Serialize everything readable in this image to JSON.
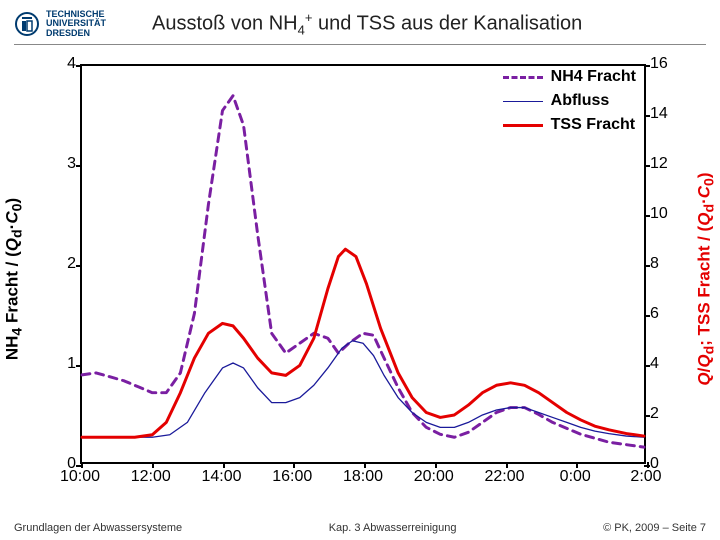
{
  "header": {
    "uni_line1": "TECHNISCHE",
    "uni_line2": "UNIVERSITÄT",
    "uni_line3": "DRESDEN",
    "title_prefix": "Ausstoß von NH",
    "title_sub": "4",
    "title_sup": "+",
    "title_suffix": " und TSS aus der Kanalisation"
  },
  "chart": {
    "type": "line",
    "x_categories": [
      "10:00",
      "12:00",
      "14:00",
      "16:00",
      "18:00",
      "20:00",
      "22:00",
      "0:00",
      "2:00"
    ],
    "y_left": {
      "min": 0,
      "max": 4,
      "ticks": [
        0,
        1,
        2,
        3,
        4
      ],
      "label": "NH₄ Fracht / (Q_d·C₀)"
    },
    "y_right": {
      "min": 0,
      "max": 16,
      "ticks": [
        0,
        2,
        4,
        6,
        8,
        10,
        12,
        14,
        16
      ],
      "label": "Q/Q_d; TSS Fracht / (Q_d·C₀)",
      "color": "#e40000"
    },
    "background_color": "#ffffff",
    "border_color": "#000000",
    "tick_fontsize": 16,
    "label_fontsize": 17,
    "legend": {
      "items": [
        {
          "label": "NH4 Fracht",
          "color": "#7a1fa2",
          "dash": "8,6",
          "width": 3
        },
        {
          "label": "Abfluss",
          "color": "#1a1a9a",
          "dash": "none",
          "width": 1.3
        },
        {
          "label": "TSS Fracht",
          "color": "#e40000",
          "dash": "none",
          "width": 3
        }
      ]
    },
    "series": [
      {
        "name": "NH4 Fracht",
        "axis": "left",
        "color": "#7a1fa2",
        "dash": "8,6",
        "width": 3,
        "points": [
          [
            10.0,
            0.88
          ],
          [
            10.4,
            0.9
          ],
          [
            10.8,
            0.86
          ],
          [
            11.2,
            0.82
          ],
          [
            11.6,
            0.76
          ],
          [
            12.0,
            0.7
          ],
          [
            12.4,
            0.7
          ],
          [
            12.8,
            0.9
          ],
          [
            13.2,
            1.5
          ],
          [
            13.6,
            2.6
          ],
          [
            14.0,
            3.55
          ],
          [
            14.3,
            3.7
          ],
          [
            14.6,
            3.4
          ],
          [
            15.0,
            2.3
          ],
          [
            15.4,
            1.3
          ],
          [
            15.8,
            1.1
          ],
          [
            16.2,
            1.2
          ],
          [
            16.6,
            1.3
          ],
          [
            17.0,
            1.25
          ],
          [
            17.3,
            1.1
          ],
          [
            17.6,
            1.2
          ],
          [
            18.0,
            1.3
          ],
          [
            18.3,
            1.28
          ],
          [
            18.6,
            1.05
          ],
          [
            19.0,
            0.75
          ],
          [
            19.4,
            0.5
          ],
          [
            19.8,
            0.35
          ],
          [
            20.2,
            0.28
          ],
          [
            20.6,
            0.25
          ],
          [
            21.0,
            0.3
          ],
          [
            21.4,
            0.4
          ],
          [
            21.8,
            0.5
          ],
          [
            22.2,
            0.55
          ],
          [
            22.6,
            0.55
          ],
          [
            23.0,
            0.48
          ],
          [
            23.4,
            0.4
          ],
          [
            23.8,
            0.34
          ],
          [
            24.2,
            0.28
          ],
          [
            24.6,
            0.24
          ],
          [
            25.0,
            0.2
          ],
          [
            25.6,
            0.17
          ],
          [
            26.0,
            0.15
          ]
        ]
      },
      {
        "name": "Abfluss",
        "axis": "right",
        "color": "#1a1a9a",
        "dash": "none",
        "width": 1.3,
        "points": [
          [
            10.0,
            1.0
          ],
          [
            10.5,
            1.0
          ],
          [
            11.0,
            1.0
          ],
          [
            11.5,
            1.0
          ],
          [
            12.0,
            1.0
          ],
          [
            12.5,
            1.1
          ],
          [
            13.0,
            1.6
          ],
          [
            13.5,
            2.8
          ],
          [
            14.0,
            3.8
          ],
          [
            14.3,
            4.0
          ],
          [
            14.6,
            3.8
          ],
          [
            15.0,
            3.0
          ],
          [
            15.4,
            2.4
          ],
          [
            15.8,
            2.4
          ],
          [
            16.2,
            2.6
          ],
          [
            16.6,
            3.1
          ],
          [
            17.0,
            3.8
          ],
          [
            17.4,
            4.6
          ],
          [
            17.7,
            4.9
          ],
          [
            18.0,
            4.8
          ],
          [
            18.3,
            4.3
          ],
          [
            18.6,
            3.5
          ],
          [
            19.0,
            2.6
          ],
          [
            19.4,
            2.0
          ],
          [
            19.8,
            1.6
          ],
          [
            20.2,
            1.4
          ],
          [
            20.6,
            1.4
          ],
          [
            21.0,
            1.6
          ],
          [
            21.4,
            1.9
          ],
          [
            21.8,
            2.1
          ],
          [
            22.2,
            2.2
          ],
          [
            22.6,
            2.2
          ],
          [
            23.0,
            2.0
          ],
          [
            23.4,
            1.8
          ],
          [
            23.8,
            1.6
          ],
          [
            24.2,
            1.4
          ],
          [
            24.6,
            1.25
          ],
          [
            25.0,
            1.15
          ],
          [
            25.5,
            1.05
          ],
          [
            26.0,
            1.0
          ]
        ]
      },
      {
        "name": "TSS Fracht",
        "axis": "right",
        "color": "#e40000",
        "dash": "none",
        "width": 3,
        "points": [
          [
            10.0,
            1.0
          ],
          [
            10.5,
            1.0
          ],
          [
            11.0,
            1.0
          ],
          [
            11.5,
            1.0
          ],
          [
            12.0,
            1.1
          ],
          [
            12.4,
            1.6
          ],
          [
            12.8,
            2.8
          ],
          [
            13.2,
            4.2
          ],
          [
            13.6,
            5.2
          ],
          [
            14.0,
            5.6
          ],
          [
            14.3,
            5.5
          ],
          [
            14.6,
            5.0
          ],
          [
            15.0,
            4.2
          ],
          [
            15.4,
            3.6
          ],
          [
            15.8,
            3.5
          ],
          [
            16.2,
            3.9
          ],
          [
            16.6,
            5.0
          ],
          [
            17.0,
            7.0
          ],
          [
            17.3,
            8.3
          ],
          [
            17.5,
            8.6
          ],
          [
            17.8,
            8.3
          ],
          [
            18.1,
            7.2
          ],
          [
            18.5,
            5.4
          ],
          [
            19.0,
            3.6
          ],
          [
            19.4,
            2.6
          ],
          [
            19.8,
            2.0
          ],
          [
            20.2,
            1.8
          ],
          [
            20.6,
            1.9
          ],
          [
            21.0,
            2.3
          ],
          [
            21.4,
            2.8
          ],
          [
            21.8,
            3.1
          ],
          [
            22.2,
            3.2
          ],
          [
            22.6,
            3.1
          ],
          [
            23.0,
            2.8
          ],
          [
            23.4,
            2.4
          ],
          [
            23.8,
            2.0
          ],
          [
            24.2,
            1.7
          ],
          [
            24.6,
            1.45
          ],
          [
            25.0,
            1.3
          ],
          [
            25.5,
            1.15
          ],
          [
            26.0,
            1.05
          ]
        ]
      }
    ]
  },
  "footer": {
    "left": "Grundlagen der Abwassersysteme",
    "center": "Kap. 3  Abwasserreinigung",
    "right": "© PK, 2009 – Seite 7"
  }
}
